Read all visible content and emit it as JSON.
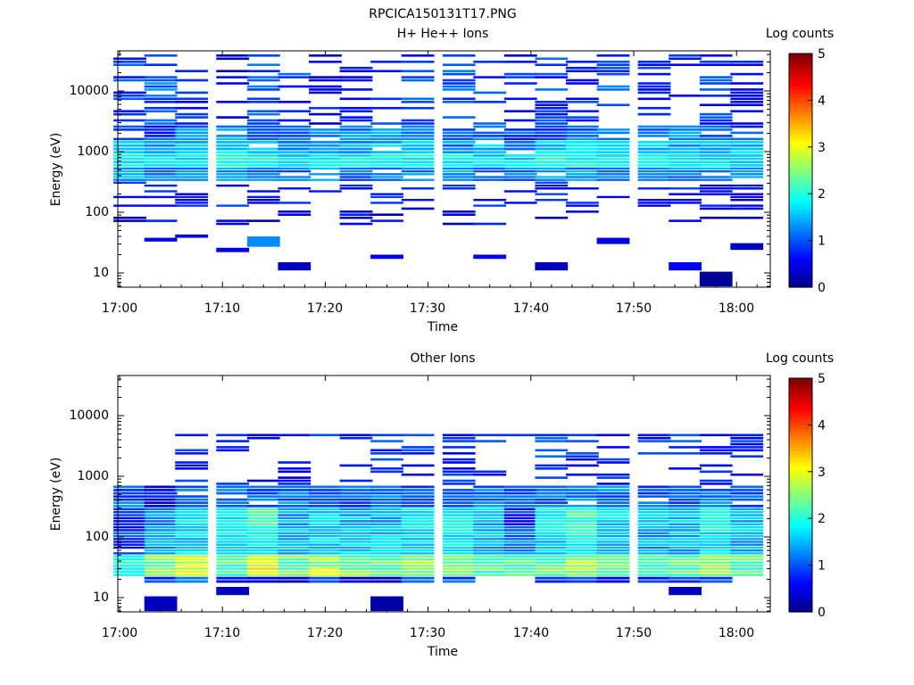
{
  "figure_title": "RPCICA150131T17.PNG",
  "chart_data": [
    {
      "type": "heatmap",
      "title": "H+ He++ Ions",
      "xlabel": "Time",
      "ylabel": "Energy (eV)",
      "xlim": [
        "17:00",
        "18:02"
      ],
      "ylim": [
        6,
        45000
      ],
      "yscale": "log",
      "xticks": [
        "17:00",
        "17:10",
        "17:20",
        "17:30",
        "17:40",
        "17:50",
        "18:00"
      ],
      "yticks": [
        {
          "value": 10,
          "label": "10"
        },
        {
          "value": 100,
          "label": "100"
        },
        {
          "value": 1000,
          "label": "1000"
        },
        {
          "value": 10000,
          "label": "10000"
        }
      ],
      "colorbar": {
        "label": "Log counts",
        "range": [
          0,
          5
        ],
        "ticks": [
          "0",
          "1",
          "2",
          "3",
          "4",
          "5"
        ],
        "colormap": "jet"
      },
      "grid": false,
      "time_columns": [
        "17:01",
        "17:04",
        "17:07",
        "17:11",
        "17:14",
        "17:17",
        "17:20",
        "17:23",
        "17:26",
        "17:29",
        "17:33",
        "17:36",
        "17:39",
        "17:42",
        "17:45",
        "17:48",
        "17:52",
        "17:55",
        "17:58",
        "18:01"
      ],
      "bands": [
        {
          "e_max": 45000,
          "e_min": 2700,
          "c": [
            0.9,
            1.1,
            0.7,
            0.6,
            1.0,
            0.9,
            0.6,
            0.6,
            0.8,
            0.9,
            1.0,
            0.9,
            0.7,
            0.9,
            0.8,
            1.0,
            0.7,
            0.8,
            0.9,
            0.7
          ],
          "fill": [
            0.35,
            0.45,
            0.45,
            0.3,
            0.45,
            0.4,
            0.25,
            0.3,
            0.3,
            0.4,
            0.55,
            0.45,
            0.35,
            0.5,
            0.4,
            0.4,
            0.35,
            0.4,
            0.45,
            0.4
          ]
        },
        {
          "e_max": 2700,
          "e_min": 1500,
          "c": [
            1.0,
            0.9,
            1.2,
            1.3,
            1.2,
            1.1,
            1.2,
            1.3,
            1.3,
            1.1,
            1.0,
            1.2,
            1.0,
            1.0,
            1.2,
            1.3,
            1.2,
            1.3,
            1.1,
            1.0
          ],
          "fill": [
            0.6,
            0.9,
            0.9,
            0.9,
            0.9,
            0.9,
            0.9,
            0.9,
            0.9,
            0.9,
            0.9,
            0.9,
            0.9,
            0.9,
            0.9,
            0.9,
            0.9,
            0.9,
            0.9,
            0.9
          ]
        },
        {
          "e_max": 1500,
          "e_min": 900,
          "c": [
            1.6,
            1.4,
            1.5,
            1.7,
            1.6,
            1.4,
            1.6,
            1.5,
            1.6,
            1.5,
            1.3,
            1.6,
            1.0,
            1.7,
            1.6,
            1.5,
            1.6,
            1.5,
            1.6,
            1.6
          ],
          "fill": [
            0.95,
            0.9,
            0.9,
            0.9,
            0.9,
            0.9,
            0.9,
            0.9,
            0.9,
            0.9,
            0.9,
            0.9,
            0.9,
            0.9,
            0.9,
            0.9,
            0.9,
            0.9,
            0.9,
            0.9
          ]
        },
        {
          "e_max": 900,
          "e_min": 550,
          "c": [
            1.8,
            1.9,
            1.8,
            1.9,
            2.0,
            1.8,
            1.9,
            1.9,
            1.8,
            1.9,
            1.9,
            1.8,
            1.7,
            2.0,
            1.9,
            1.8,
            1.9,
            1.9,
            1.8,
            1.8
          ],
          "fill": [
            1,
            1,
            1,
            1,
            1,
            1,
            1,
            1,
            1,
            1,
            1,
            1,
            1,
            1,
            1,
            1,
            1,
            1,
            1,
            1
          ]
        },
        {
          "e_max": 550,
          "e_min": 320,
          "c": [
            1.4,
            1.3,
            1.3,
            1.3,
            1.2,
            1.2,
            1.3,
            1.2,
            1.3,
            1.2,
            1.3,
            1.3,
            1.2,
            1.3,
            1.3,
            1.2,
            1.3,
            1.3,
            1.3,
            1.3
          ],
          "fill": [
            0.9,
            0.9,
            0.9,
            0.9,
            0.9,
            0.9,
            0.9,
            0.9,
            0.9,
            0.9,
            0.9,
            0.9,
            0.9,
            0.9,
            0.9,
            0.9,
            0.9,
            0.9,
            0.9,
            0.9
          ]
        },
        {
          "e_max": 320,
          "e_min": 120,
          "c": [
            0.7,
            0.8,
            0.6,
            0.7,
            0.7,
            0.8,
            0.6,
            0.7,
            0.7,
            0.6,
            0.7,
            0.7,
            0.6,
            0.7,
            0.6,
            0.7,
            0.6,
            0.7,
            0.7,
            0.6
          ],
          "fill": [
            0.35,
            0.3,
            0.3,
            0.3,
            0.35,
            0.3,
            0.3,
            0.3,
            0.3,
            0.3,
            0.3,
            0.3,
            0.3,
            0.3,
            0.3,
            0.3,
            0.3,
            0.3,
            0.3,
            0.3
          ]
        },
        {
          "e_max": 120,
          "e_min": 60,
          "c": [
            0.5,
            0.5,
            0.4,
            0.6,
            0.5,
            0.5,
            0.4,
            0.5,
            0.5,
            0.4,
            0.5,
            0.5,
            0.4,
            0.5,
            0.4,
            0.5,
            0.4,
            0.5,
            0.4,
            0.5
          ],
          "fill": [
            0.25,
            0.2,
            0.1,
            0.2,
            0.3,
            0.25,
            0.1,
            0.2,
            0.25,
            0.15,
            0.3,
            0.25,
            0.3,
            0.15,
            0.15,
            0.2,
            0.15,
            0.3,
            0.2,
            0.2
          ]
        }
      ],
      "isolated_blocks": [
        {
          "time": "17:04",
          "e_top": 38,
          "e_bottom": 33,
          "c": 0.5
        },
        {
          "time": "17:07",
          "e_top": 43,
          "e_bottom": 38,
          "c": 0.5
        },
        {
          "time": "17:11",
          "e_top": 26,
          "e_bottom": 22,
          "c": 0.5
        },
        {
          "time": "17:14",
          "e_top": 40,
          "e_bottom": 27,
          "c": 1.3
        },
        {
          "time": "17:17",
          "e_top": 15,
          "e_bottom": 11,
          "c": 0.3
        },
        {
          "time": "17:26",
          "e_top": 20,
          "e_bottom": 17,
          "c": 0.5
        },
        {
          "time": "17:36",
          "e_top": 20,
          "e_bottom": 17,
          "c": 0.5
        },
        {
          "time": "17:42",
          "e_top": 15,
          "e_bottom": 11,
          "c": 0.3
        },
        {
          "time": "17:48",
          "e_top": 38,
          "e_bottom": 30,
          "c": 0.5
        },
        {
          "time": "17:55",
          "e_top": 15,
          "e_bottom": 11,
          "c": 0.6
        },
        {
          "time": "17:58",
          "e_top": 10.5,
          "e_bottom": 6,
          "c": 0.1
        },
        {
          "time": "18:01",
          "e_top": 31,
          "e_bottom": 24,
          "c": 0.3
        }
      ]
    },
    {
      "type": "heatmap",
      "title": "Other Ions",
      "xlabel": "Time",
      "ylabel": "Energy (eV)",
      "xlim": [
        "17:00",
        "18:02"
      ],
      "ylim": [
        6,
        45000
      ],
      "yscale": "log",
      "xticks": [
        "17:00",
        "17:10",
        "17:20",
        "17:30",
        "17:40",
        "17:50",
        "18:00"
      ],
      "yticks": [
        {
          "value": 10,
          "label": "10"
        },
        {
          "value": 100,
          "label": "100"
        },
        {
          "value": 1000,
          "label": "1000"
        },
        {
          "value": 10000,
          "label": "10000"
        }
      ],
      "colorbar": {
        "label": "Log counts",
        "range": [
          0,
          5
        ],
        "ticks": [
          "0",
          "1",
          "2",
          "3",
          "4",
          "5"
        ],
        "colormap": "jet"
      },
      "grid": false,
      "time_columns": [
        "17:01",
        "17:04",
        "17:07",
        "17:11",
        "17:14",
        "17:17",
        "17:20",
        "17:23",
        "17:26",
        "17:29",
        "17:33",
        "17:36",
        "17:39",
        "17:42",
        "17:45",
        "17:48",
        "17:52",
        "17:55",
        "17:58",
        "18:01"
      ],
      "bands": [
        {
          "e_max": 5000,
          "e_min": 700,
          "c": [
            0.0,
            0.0,
            0.8,
            0.7,
            0.6,
            0.7,
            0.8,
            0.7,
            0.9,
            0.8,
            0.7,
            0.8,
            0.6,
            0.9,
            0.8,
            0.7,
            0.8,
            0.9,
            0.8,
            0.8
          ],
          "fill": [
            0,
            0,
            0.4,
            0.25,
            0.2,
            0.3,
            0.2,
            0.25,
            0.35,
            0.3,
            0.35,
            0.3,
            0.25,
            0.4,
            0.35,
            0.35,
            0.3,
            0.4,
            0.4,
            0.3
          ]
        },
        {
          "e_max": 700,
          "e_min": 300,
          "c": [
            1.1,
            0.6,
            1.0,
            1.2,
            1.1,
            1.2,
            1.0,
            1.1,
            1.2,
            1.0,
            1.1,
            1.2,
            1.0,
            1.1,
            1.2,
            1.2,
            1.1,
            1.0,
            1.2,
            1.1
          ],
          "fill": [
            0.9,
            0.95,
            0.95,
            0.95,
            0.95,
            0.95,
            0.95,
            0.95,
            0.95,
            0.95,
            0.95,
            0.95,
            0.95,
            0.95,
            0.95,
            0.95,
            0.95,
            0.95,
            0.95,
            0.95
          ]
        },
        {
          "e_max": 300,
          "e_min": 120,
          "c": [
            0.7,
            1.4,
            1.8,
            1.9,
            2.1,
            1.5,
            1.7,
            1.6,
            1.5,
            1.8,
            2.0,
            1.6,
            0.8,
            2.0,
            2.2,
            1.7,
            1.5,
            1.6,
            1.9,
            1.6
          ],
          "fill": [
            0.85,
            1,
            1,
            1,
            1,
            1,
            1,
            1,
            1,
            1,
            1,
            1,
            1,
            1,
            1,
            1,
            1,
            1,
            1,
            1
          ]
        },
        {
          "e_max": 120,
          "e_min": 50,
          "c": [
            0.9,
            1.5,
            1.7,
            1.8,
            1.9,
            1.5,
            1.7,
            1.6,
            1.6,
            1.7,
            1.8,
            1.5,
            1.2,
            1.7,
            2.0,
            1.6,
            1.4,
            1.5,
            1.7,
            1.5
          ],
          "fill": [
            0.8,
            1,
            1,
            1,
            1,
            1,
            1,
            1,
            1,
            1,
            1,
            1,
            1,
            1,
            1,
            1,
            1,
            1,
            1,
            1
          ]
        },
        {
          "e_max": 50,
          "e_min": 22,
          "c": [
            2.0,
            2.5,
            2.8,
            2.3,
            3.1,
            2.4,
            2.7,
            2.5,
            2.4,
            2.6,
            2.4,
            2.3,
            2.2,
            2.3,
            2.6,
            2.4,
            2.3,
            2.4,
            2.6,
            2.3
          ],
          "fill": [
            1,
            1,
            1,
            1,
            1,
            1,
            1,
            1,
            1,
            1,
            1,
            1,
            1,
            1,
            1,
            1,
            1,
            1,
            1,
            1
          ]
        },
        {
          "e_max": 22,
          "e_min": 17,
          "c": [
            0.0,
            1.0,
            1.1,
            0.8,
            0.7,
            0.3,
            0.8,
            0.5,
            0.6,
            1.0,
            1.1,
            0.0,
            0.0,
            1.0,
            0.9,
            0.4,
            0.9,
            0.8,
            1.0,
            0.0
          ],
          "fill": [
            0,
            1,
            1,
            1,
            1,
            1,
            1,
            1,
            1,
            1,
            1,
            0,
            0,
            1,
            1,
            1,
            1,
            1,
            1,
            0
          ]
        }
      ],
      "isolated_blocks": [
        {
          "time": "17:04",
          "e_top": 10.5,
          "e_bottom": 6,
          "c": 0.3
        },
        {
          "time": "17:11",
          "e_top": 15,
          "e_bottom": 11,
          "c": 0.3
        },
        {
          "time": "17:26",
          "e_top": 10.5,
          "e_bottom": 6,
          "c": 0.2
        },
        {
          "time": "17:55",
          "e_top": 15,
          "e_bottom": 11,
          "c": 0.3
        }
      ]
    }
  ]
}
